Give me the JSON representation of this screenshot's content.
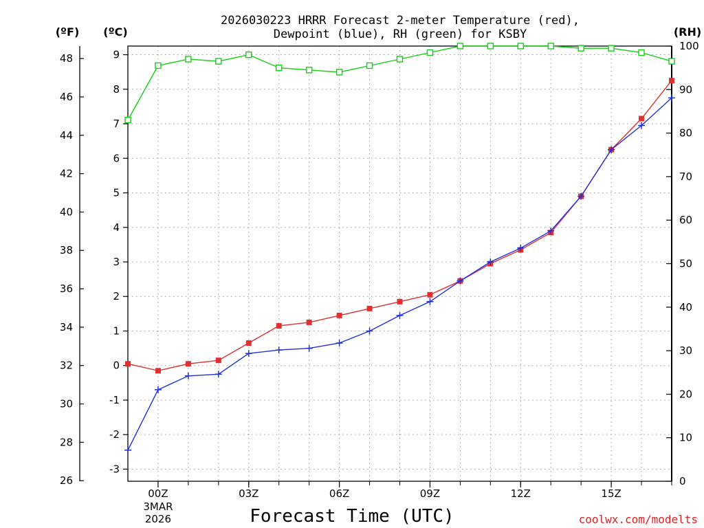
{
  "chart_data": {
    "type": "line",
    "title_line1": "2026030223 HRRR Forecast 2-meter Temperature (red),",
    "title_line2": "Dewpoint (blue), RH (green) for KSBY",
    "xlabel": "Forecast Time (UTC)",
    "credit": "coolwx.com/modelts",
    "units": {
      "fahrenheit": "(ºF)",
      "celsius": "(ºC)",
      "rh": "(RH)"
    },
    "x_hours": [
      -1,
      0,
      1,
      2,
      3,
      4,
      5,
      6,
      7,
      8,
      9,
      10,
      11,
      12,
      13,
      14,
      15,
      16,
      17
    ],
    "xlim": [
      -1,
      17
    ],
    "x_ticks": [
      {
        "hour": 0,
        "label": "00Z"
      },
      {
        "hour": 3,
        "label": "03Z"
      },
      {
        "hour": 6,
        "label": "06Z"
      },
      {
        "hour": 9,
        "label": "09Z"
      },
      {
        "hour": 12,
        "label": "12Z"
      },
      {
        "hour": 15,
        "label": "15Z"
      }
    ],
    "date_label": {
      "hour": 0,
      "line1": "3MAR",
      "line2": "2026"
    },
    "celsius_ylim": [
      -3.35,
      9.25
    ],
    "celsius_ticks": [
      "-3",
      "-2",
      "-1",
      "0",
      "1",
      "2",
      "3",
      "4",
      "5",
      "6",
      "7",
      "8",
      "9"
    ],
    "fahrenheit_ticks": [
      "26",
      "28",
      "30",
      "32",
      "34",
      "36",
      "38",
      "40",
      "42",
      "44",
      "46",
      "48"
    ],
    "rh_ylim": [
      0,
      100
    ],
    "rh_ticks": [
      "0",
      "10",
      "20",
      "30",
      "40",
      "50",
      "60",
      "70",
      "80",
      "90",
      "100"
    ],
    "series": [
      {
        "name": "Temperature",
        "color": "#e03030",
        "marker": "square-filled",
        "values": [
          0.05,
          -0.15,
          0.05,
          0.15,
          0.65,
          1.15,
          1.25,
          1.45,
          1.65,
          1.85,
          2.05,
          2.45,
          2.95,
          3.35,
          3.85,
          4.9,
          6.25,
          7.15,
          8.25
        ]
      },
      {
        "name": "Dewpoint",
        "color": "#2030e0",
        "marker": "plus",
        "values": [
          -2.45,
          -0.7,
          -0.3,
          -0.25,
          0.35,
          0.45,
          0.5,
          0.65,
          1.0,
          1.45,
          1.85,
          2.45,
          3.0,
          3.4,
          3.9,
          4.9,
          6.25,
          6.95,
          7.75
        ]
      },
      {
        "name": "RH",
        "color": "#10d010",
        "marker": "square-open",
        "values": [
          83,
          95.5,
          97,
          96.5,
          98,
          95,
          94.5,
          94,
          95.5,
          97,
          98.5,
          100,
          100,
          100,
          100,
          99.5,
          99.5,
          98.5,
          96.5
        ]
      }
    ]
  }
}
